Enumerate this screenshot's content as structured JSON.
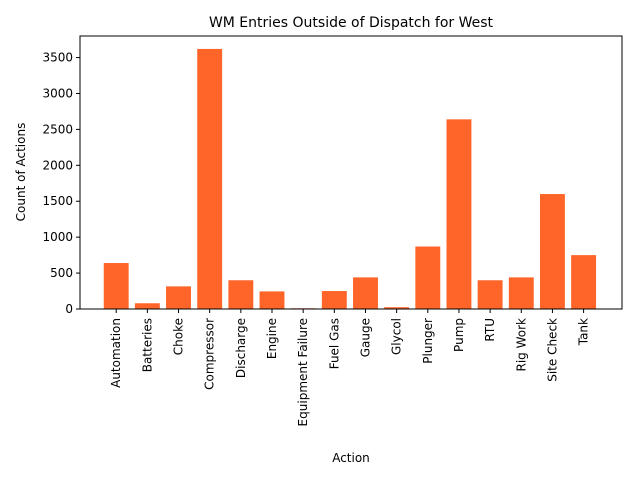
{
  "chart_data": {
    "type": "bar",
    "title": "WM Entries Outside of Dispatch for West",
    "xlabel": "Action",
    "ylabel": "Count of Actions",
    "categories": [
      "Automation",
      "Batteries",
      "Choke",
      "Compressor",
      "Discharge",
      "Engine",
      "Equipment Failure",
      "Fuel Gas",
      "Gauge",
      "Glycol",
      "Plunger",
      "Pump",
      "RTU",
      "Rig Work",
      "Site Check",
      "Tank"
    ],
    "values": [
      640,
      80,
      315,
      3620,
      400,
      245,
      10,
      250,
      440,
      25,
      870,
      2640,
      400,
      440,
      1600,
      750
    ],
    "ylim": [
      0,
      3800
    ],
    "yticks": [
      0,
      500,
      1000,
      1500,
      2000,
      2500,
      3000,
      3500
    ],
    "bar_color": "#ff6528",
    "grid": false,
    "legend": "none"
  }
}
